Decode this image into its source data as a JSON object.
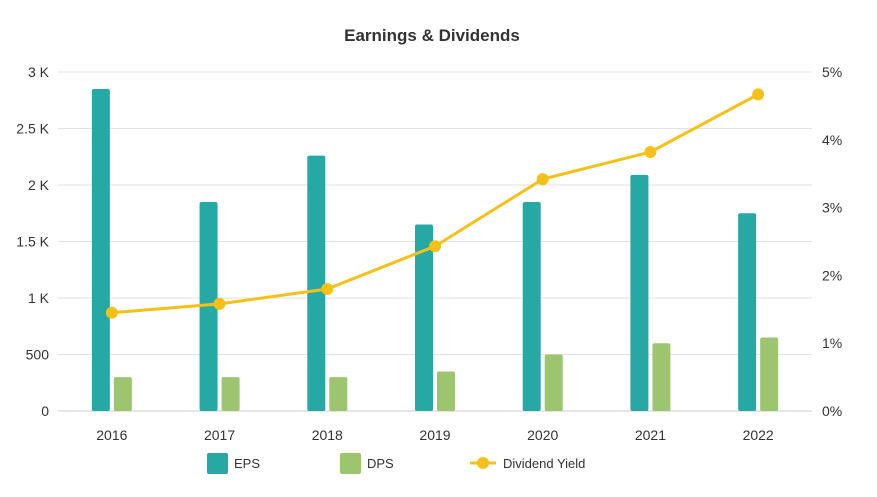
{
  "chart_data": {
    "type": "bar",
    "title": "Earnings & Dividends",
    "categories": [
      "2016",
      "2017",
      "2018",
      "2019",
      "2020",
      "2021",
      "2022"
    ],
    "series": [
      {
        "name": "EPS",
        "kind": "bar",
        "axis": "left",
        "color": "#26a9a5",
        "values": [
          2850,
          1850,
          2260,
          1650,
          1850,
          2090,
          1750
        ]
      },
      {
        "name": "DPS",
        "kind": "bar",
        "axis": "left",
        "color": "#9dc46e",
        "values": [
          300,
          300,
          300,
          350,
          500,
          600,
          650
        ]
      },
      {
        "name": "Dividend Yield",
        "kind": "line",
        "axis": "right",
        "color": "#f5c018",
        "values": [
          1.45,
          1.58,
          1.8,
          2.43,
          3.42,
          3.82,
          4.67
        ]
      }
    ],
    "y_left": {
      "min": 0,
      "max": 3000,
      "ticks": [
        0,
        500,
        1000,
        1500,
        2000,
        2500,
        3000
      ],
      "tick_labels": [
        "0",
        "500",
        "1 K",
        "1.5 K",
        "2 K",
        "2.5 K",
        "3 K"
      ]
    },
    "y_right": {
      "min": 0,
      "max": 5,
      "ticks": [
        0,
        1,
        2,
        3,
        4,
        5
      ],
      "tick_labels": [
        "0%",
        "1%",
        "2%",
        "3%",
        "4%",
        "5%"
      ]
    },
    "grid": true,
    "legend": {
      "position": "bottom-center",
      "entries": [
        "EPS",
        "DPS",
        "Dividend Yield"
      ]
    },
    "gridline_color": "#e2e2e2",
    "axis_color": "#cccccc"
  }
}
